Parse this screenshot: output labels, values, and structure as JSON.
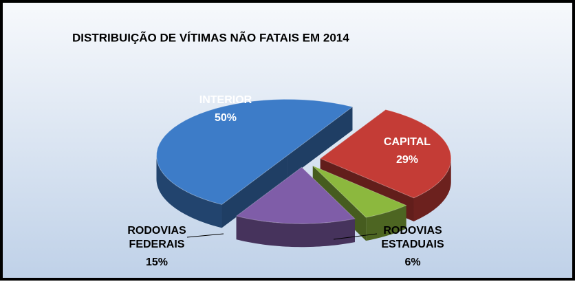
{
  "chart_data": {
    "type": "pie3d",
    "title": "DISTRIBUIÇÃO DE VÍTIMAS NÃO FATAIS EM 2014",
    "categories": [
      "CAPITAL",
      "RODOVIAS ESTADUAIS",
      "RODOVIAS FEDERAIS",
      "INTERIOR"
    ],
    "values": [
      29,
      6,
      15,
      50
    ],
    "value_labels": [
      "29%",
      "6%",
      "15%",
      "50%"
    ],
    "colors": [
      "#c43c36",
      "#8cb83e",
      "#7f5da8",
      "#3d7cc8"
    ]
  }
}
